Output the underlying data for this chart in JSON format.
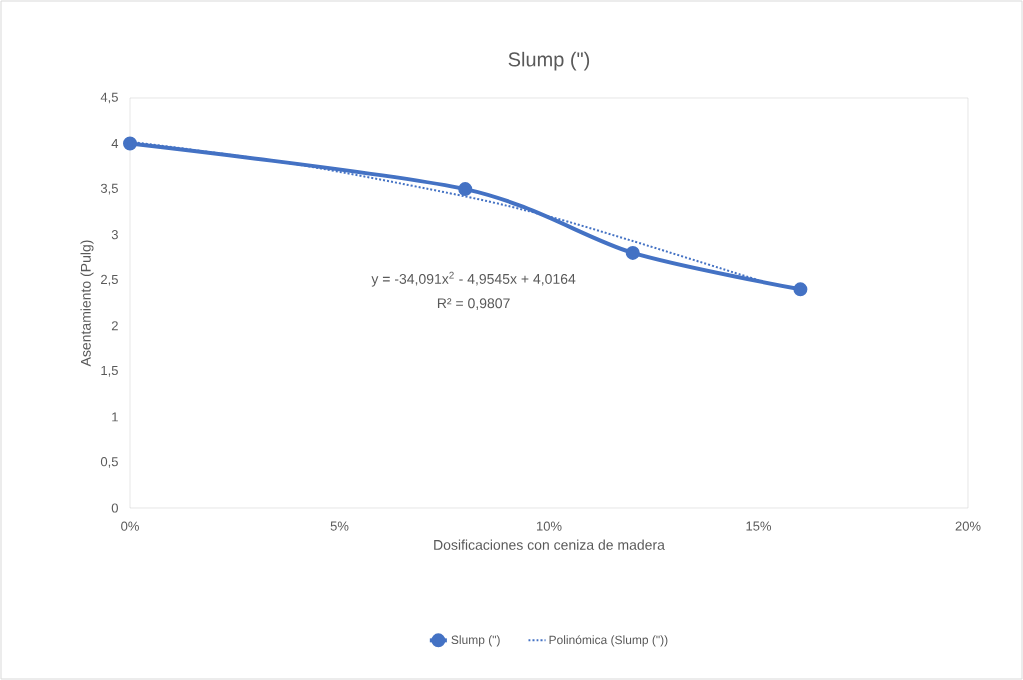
{
  "chart_data": {
    "type": "line",
    "title": "Slump (\")",
    "xlabel": "Dosificaciones con ceniza de madera",
    "ylabel": "Asentamiento (Pulg)",
    "x": [
      0,
      8,
      12,
      16
    ],
    "series": [
      {
        "name": "Slump (\")",
        "color": "#4472c4",
        "values": [
          4,
          3.5,
          2.8,
          2.4
        ],
        "marker": "circle",
        "line_style": "solid"
      },
      {
        "name": "Polinómica (Slump (\"))",
        "type": "line",
        "color": "#4472c4",
        "x": [
          0,
          4,
          8,
          10,
          12,
          15
        ],
        "values": [
          4.02,
          3.77,
          3.42,
          3.2,
          2.93,
          2.5
        ],
        "marker": "none",
        "line_style": "dotted"
      }
    ],
    "xlim": [
      0,
      20
    ],
    "ylim": [
      0,
      4.5
    ],
    "xticks": [
      {
        "value": 0,
        "label": "0%"
      },
      {
        "value": 5,
        "label": "5%"
      },
      {
        "value": 10,
        "label": "10%"
      },
      {
        "value": 15,
        "label": "15%"
      },
      {
        "value": 20,
        "label": "20%"
      }
    ],
    "yticks": [
      0,
      {
        "value": 0.5,
        "label": "0,5"
      },
      1,
      {
        "value": 1.5,
        "label": "1,5"
      },
      2,
      {
        "value": 2.5,
        "label": "2,5"
      },
      3,
      {
        "value": 3.5,
        "label": "3,5"
      },
      4,
      {
        "value": 4.5,
        "label": "4,5"
      }
    ],
    "grid": false,
    "legend": "bottom",
    "annotations": [
      "y = -34,091x$^{2}$ - 4,9545x + 4,0164",
      "R² = 0,9807"
    ]
  }
}
